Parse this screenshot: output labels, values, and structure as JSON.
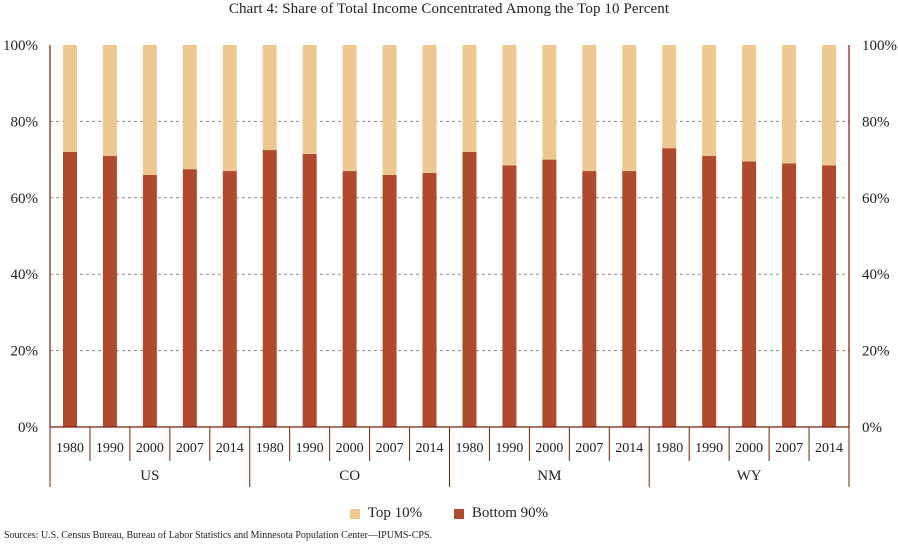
{
  "chart_data": {
    "type": "bar",
    "stacked": true,
    "title": "Chart 4: Share of Total Income Concentrated Among the Top 10 Percent",
    "groups": [
      {
        "name": "US",
        "categories": [
          "1980",
          "1990",
          "2000",
          "2007",
          "2014"
        ]
      },
      {
        "name": "CO",
        "categories": [
          "1980",
          "1990",
          "2000",
          "2007",
          "2014"
        ]
      },
      {
        "name": "NM",
        "categories": [
          "1980",
          "1990",
          "2000",
          "2007",
          "2014"
        ]
      },
      {
        "name": "WY",
        "categories": [
          "1980",
          "1990",
          "2000",
          "2007",
          "2014"
        ]
      }
    ],
    "series": [
      {
        "name": "Bottom 90%",
        "color": "#b04a2e",
        "values": [
          72,
          71,
          66,
          67.5,
          67,
          72.5,
          71.5,
          67,
          66,
          66.5,
          72,
          68.5,
          70,
          67,
          67,
          73,
          71,
          69.5,
          69,
          68.5
        ]
      },
      {
        "name": "Top 10%",
        "color": "#edc991",
        "values": [
          28,
          29,
          34,
          32.5,
          33,
          27.5,
          28.5,
          33,
          34,
          33.5,
          28,
          31.5,
          30,
          33,
          33,
          27,
          29,
          30.5,
          31,
          31.5
        ]
      }
    ],
    "yticks": [
      "0%",
      "20%",
      "40%",
      "60%",
      "80%",
      "100%"
    ],
    "ylim": [
      0,
      100
    ],
    "grid": true,
    "legend_position": "bottom",
    "axis_color": "#7a1f12"
  },
  "source_note": "Sources: U.S. Census Bureau, Bureau of Labor Statistics and Minnesota Population Center—IPUMS-CPS."
}
